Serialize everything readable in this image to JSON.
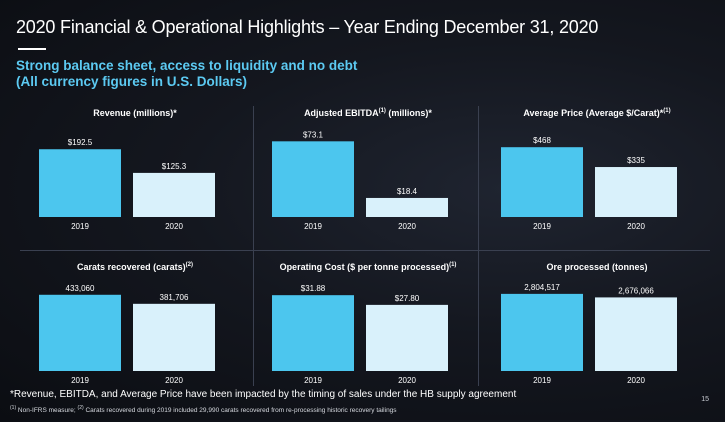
{
  "header": {
    "title": "2020 Financial & Operational Highlights – Year Ending December 31, 2020",
    "subtitle_line1": "Strong balance sheet, access to liquidity and no debt",
    "subtitle_line2": "(All currency figures in U.S. Dollars)"
  },
  "colors": {
    "bar_2019": "#4cc6ee",
    "bar_2020": "#d9f1fb",
    "accent": "#5ccaf2"
  },
  "chart_data": [
    {
      "type": "bar",
      "title": "Revenue (millions)*",
      "title_sup": "",
      "categories": [
        "2019",
        "2020"
      ],
      "values": [
        192.5,
        125.3
      ],
      "labels": [
        "$192.5",
        "$125.3"
      ],
      "ylim": [
        0,
        250
      ]
    },
    {
      "type": "bar",
      "title": "Adjusted EBITDA",
      "title_sup": "(1)",
      "title_suffix": " (millions)*",
      "categories": [
        "2019",
        "2020"
      ],
      "values": [
        73.1,
        18.4
      ],
      "labels": [
        "$73.1",
        "$18.4"
      ],
      "ylim": [
        0,
        85
      ]
    },
    {
      "type": "bar",
      "title": "Average Price (Average $/Carat)*",
      "title_sup": "(1)",
      "categories": [
        "2019",
        "2020"
      ],
      "values": [
        468,
        335
      ],
      "labels": [
        "$468",
        "$335"
      ],
      "ylim": [
        0,
        590
      ]
    },
    {
      "type": "bar",
      "title": "Carats recovered (carats)",
      "title_sup": "(2)",
      "categories": [
        "2019",
        "2020"
      ],
      "values": [
        433060,
        381706
      ],
      "labels": [
        "433,060",
        "381,706"
      ],
      "ylim": [
        0,
        500000
      ]
    },
    {
      "type": "bar",
      "title": "Operating Cost ($ per tonne processed)",
      "title_sup": "(1)",
      "categories": [
        "2019",
        "2020"
      ],
      "values": [
        31.88,
        27.8
      ],
      "labels": [
        "$31.88",
        "$27.80"
      ],
      "ylim": [
        0,
        37
      ]
    },
    {
      "type": "bar",
      "title": "Ore processed (tonnes)",
      "title_sup": "",
      "categories": [
        "2019",
        "2020"
      ],
      "values": [
        2804517,
        2676066
      ],
      "labels": [
        "2,804,517",
        "2,676,066"
      ],
      "ylim": [
        0,
        3200000
      ]
    }
  ],
  "footer": {
    "note": "*Revenue, EBITDA, and Average Price have been impacted by the timing of sales under the HB supply agreement",
    "fn1_mark": "(1)",
    "fn1_text": " Non-IFRS measure; ",
    "fn2_mark": "(2)",
    "fn2_text": " Carats recovered during 2019 included 29,990 carats recovered from re-processing historic recovery tailings",
    "page_number": "15"
  }
}
